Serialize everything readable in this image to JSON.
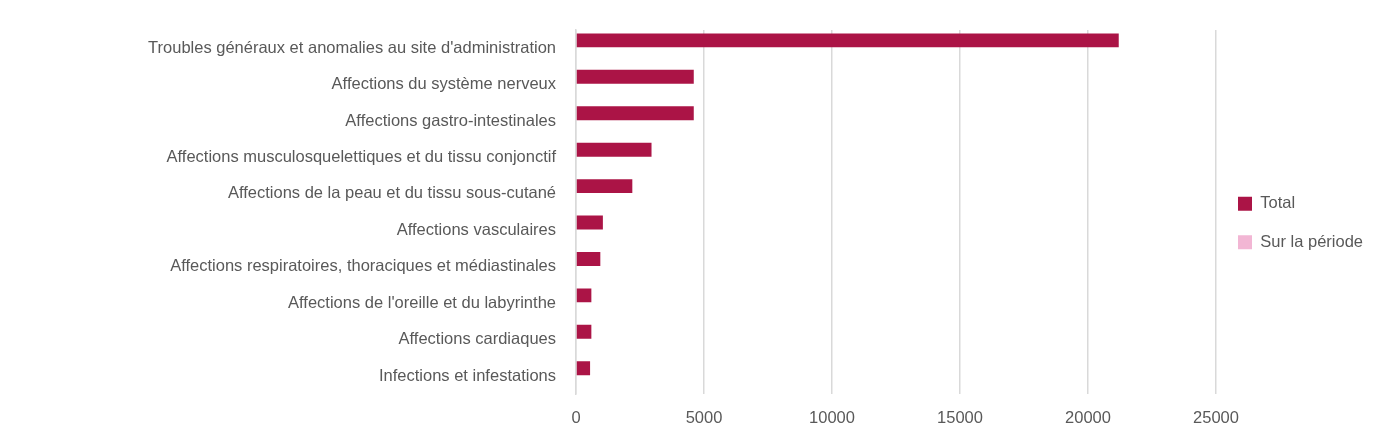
{
  "chart_data": {
    "type": "bar",
    "orientation": "horizontal",
    "categories": [
      "Troubles généraux et anomalies au site d'administration",
      "Affections du système nerveux",
      "Affections gastro-intestinales",
      "Affections musculosquelettiques et du tissu conjonctif",
      "Affections de la peau et du tissu sous-cutané",
      "Affections vasculaires",
      "Affections respiratoires, thoraciques et médiastinales",
      "Affections de l'oreille et du labyrinthe",
      "Affections cardiaques",
      "Infections et infestations"
    ],
    "series": [
      {
        "name": "Total",
        "color": "#ab1446",
        "values": [
          21200,
          4600,
          4600,
          2950,
          2200,
          1050,
          950,
          600,
          600,
          550
        ]
      },
      {
        "name": "Sur la période",
        "color": "#f2b6d4",
        "values": [
          0,
          0,
          0,
          0,
          0,
          0,
          0,
          0,
          0,
          0
        ]
      }
    ],
    "xlim": [
      0,
      25000
    ],
    "xticks": [
      0,
      5000,
      10000,
      15000,
      20000,
      25000
    ],
    "grid": "x",
    "legend": "right"
  }
}
